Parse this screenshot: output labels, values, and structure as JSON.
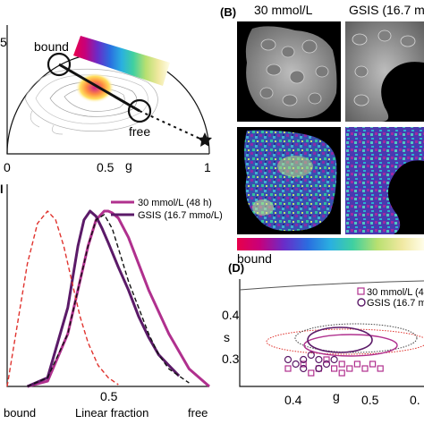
{
  "panel_a": {
    "tick_top": "5",
    "x_ticks": [
      "0",
      "0.5",
      "1"
    ],
    "x_label": "g",
    "label_bound": "bound",
    "label_free": "free"
  },
  "panel_b": {
    "letter": "(B)",
    "col1_title": "30 mmol/L",
    "col2_title": "GSIS (16.7 m",
    "colorbar_left_label": "bound"
  },
  "panel_c": {
    "letter_fragment": "l",
    "legend": [
      "30 mmol/L (48 h)",
      "GSIS (16.7 mmo/L)"
    ],
    "tick_mid": "0.5",
    "x_label": "Linear fraction",
    "label_bound": "bound",
    "label_free": "free"
  },
  "panel_d": {
    "letter": "(D)",
    "legend": [
      "30 mmol/L (4",
      "GSIS (16.7 mo"
    ],
    "y_ticks": [
      "0.4",
      "0.3"
    ],
    "y_label": "s",
    "x_ticks": [
      "0.4",
      "g",
      "0.5"
    ],
    "x_tick_fragment": "0."
  },
  "colors": {
    "magenta": "#b0308e",
    "purple": "#5b1a68",
    "red_dashed": "#e0332e",
    "black": "#111111"
  },
  "chart_data": [
    {
      "type": "line",
      "xlabel": "Linear fraction",
      "x_range_labels": [
        "bound",
        "free"
      ],
      "series": [
        {
          "name": "30 mmol/L (48 h)",
          "color": "#b0308e",
          "x": [
            0.1,
            0.2,
            0.3,
            0.35,
            0.4,
            0.44,
            0.48,
            0.5,
            0.52,
            0.55,
            0.6,
            0.65,
            0.7,
            0.8,
            0.9,
            1.0
          ],
          "y": [
            0.0,
            0.03,
            0.3,
            0.55,
            0.8,
            0.95,
            1.0,
            1.0,
            0.99,
            0.96,
            0.85,
            0.7,
            0.55,
            0.3,
            0.1,
            0.0
          ]
        },
        {
          "name": "GSIS (16.7 mmo/L)",
          "color": "#5b1a68",
          "x": [
            0.1,
            0.2,
            0.3,
            0.35,
            0.38,
            0.41,
            0.44,
            0.47,
            0.5,
            0.55,
            0.6,
            0.65,
            0.7,
            0.75,
            0.8,
            0.85
          ],
          "y": [
            0.0,
            0.05,
            0.45,
            0.8,
            0.95,
            1.0,
            0.97,
            0.9,
            0.82,
            0.68,
            0.55,
            0.4,
            0.28,
            0.18,
            0.12,
            0.06
          ]
        },
        {
          "color": "#e0332e",
          "dashed": true,
          "x": [
            0.0,
            0.05,
            0.1,
            0.15,
            0.2,
            0.24,
            0.28,
            0.32,
            0.36,
            0.4,
            0.45,
            0.5,
            0.55
          ],
          "y": [
            0.0,
            0.35,
            0.7,
            0.93,
            1.0,
            0.95,
            0.8,
            0.6,
            0.4,
            0.25,
            0.12,
            0.05,
            0.01
          ]
        },
        {
          "color": "#111111",
          "dashed": true,
          "x": [
            0.1,
            0.2,
            0.3,
            0.35,
            0.4,
            0.44,
            0.48,
            0.52,
            0.56,
            0.6,
            0.65,
            0.7,
            0.75,
            0.8,
            0.9
          ],
          "y": [
            0.0,
            0.05,
            0.3,
            0.55,
            0.8,
            0.95,
            0.98,
            0.9,
            0.75,
            0.6,
            0.45,
            0.3,
            0.18,
            0.1,
            0.02
          ]
        }
      ]
    },
    {
      "type": "scatter",
      "ylabel": "s",
      "xlabel": "g",
      "series": [
        {
          "name": "30 mmol/L (4",
          "color": "#b0308e",
          "marker": "square",
          "points": [
            [
              0.4,
              0.28
            ],
            [
              0.42,
              0.29
            ],
            [
              0.44,
              0.28
            ],
            [
              0.45,
              0.3
            ],
            [
              0.46,
              0.28
            ],
            [
              0.47,
              0.29
            ],
            [
              0.48,
              0.28
            ],
            [
              0.49,
              0.29
            ],
            [
              0.5,
              0.28
            ],
            [
              0.51,
              0.29
            ],
            [
              0.52,
              0.28
            ],
            [
              0.43,
              0.27
            ],
            [
              0.47,
              0.27
            ]
          ]
        },
        {
          "name": "GSIS (16.7 mo",
          "color": "#5b1a68",
          "marker": "circle",
          "points": [
            [
              0.4,
              0.3
            ],
            [
              0.41,
              0.29
            ],
            [
              0.42,
              0.3
            ],
            [
              0.43,
              0.31
            ],
            [
              0.44,
              0.3
            ],
            [
              0.45,
              0.29
            ],
            [
              0.46,
              0.3
            ],
            [
              0.44,
              0.28
            ],
            [
              0.42,
              0.28
            ]
          ]
        }
      ]
    }
  ]
}
